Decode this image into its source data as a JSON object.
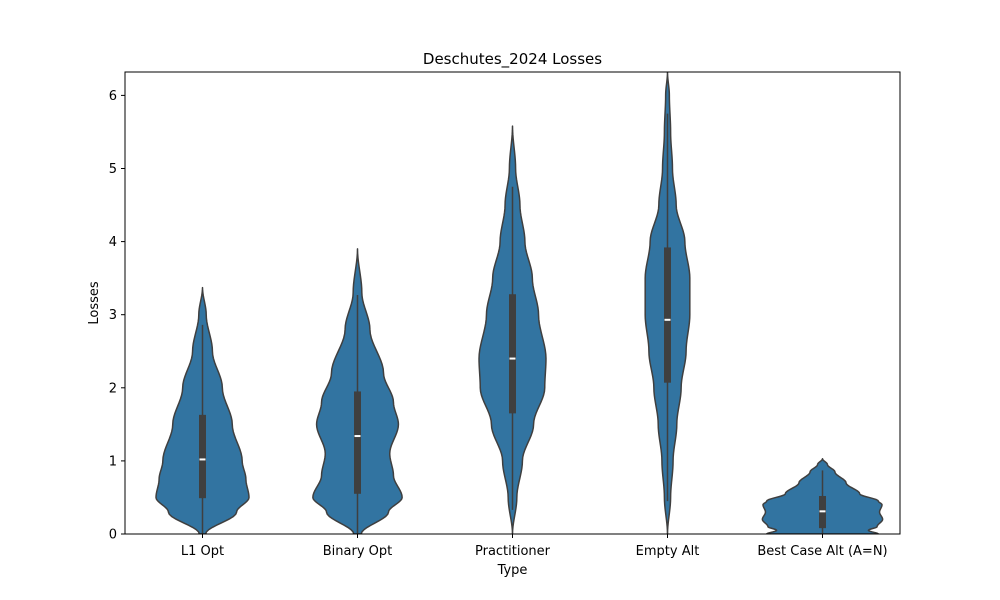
{
  "chart_data": {
    "type": "violin",
    "title": "Deschutes_2024 Losses",
    "xlabel": "Type",
    "ylabel": "Losses",
    "ylim": [
      0,
      6.32
    ],
    "yticks": [
      0,
      1,
      2,
      3,
      4,
      5,
      6
    ],
    "grid": false,
    "legend": "none",
    "color": "#3274a1",
    "edge_color": "#3f3f3f",
    "categories": [
      "L1 Opt",
      "Binary Opt",
      "Practitioner",
      "Empty Alt",
      "Best Case Alt (A=N)"
    ],
    "series": [
      {
        "category": "L1 Opt",
        "min": 0,
        "q1": 0.49,
        "median": 1.02,
        "q3": 1.63,
        "max": 3.37,
        "whisker_low": 0,
        "whisker_high": 2.86,
        "density": [
          [
            0,
            0.05
          ],
          [
            0.3,
            0.55
          ],
          [
            0.5,
            0.75
          ],
          [
            0.75,
            0.7
          ],
          [
            1.0,
            0.64
          ],
          [
            1.5,
            0.48
          ],
          [
            2.0,
            0.32
          ],
          [
            2.5,
            0.16
          ],
          [
            3.0,
            0.06
          ],
          [
            3.37,
            0
          ]
        ]
      },
      {
        "category": "Binary Opt",
        "min": 0,
        "q1": 0.55,
        "median": 1.34,
        "q3": 1.95,
        "max": 3.9,
        "whisker_low": 0,
        "whisker_high": 3.27,
        "density": [
          [
            0,
            0.06
          ],
          [
            0.3,
            0.5
          ],
          [
            0.5,
            0.72
          ],
          [
            0.8,
            0.58
          ],
          [
            1.1,
            0.52
          ],
          [
            1.5,
            0.66
          ],
          [
            1.8,
            0.58
          ],
          [
            2.2,
            0.42
          ],
          [
            2.8,
            0.2
          ],
          [
            3.3,
            0.07
          ],
          [
            3.9,
            0
          ]
        ]
      },
      {
        "category": "Practitioner",
        "min": 0,
        "q1": 1.65,
        "median": 2.4,
        "q3": 3.28,
        "max": 5.58,
        "whisker_low": 0.33,
        "whisker_high": 4.75,
        "density": [
          [
            0,
            0
          ],
          [
            0.5,
            0.07
          ],
          [
            1.0,
            0.16
          ],
          [
            1.5,
            0.34
          ],
          [
            2.0,
            0.52
          ],
          [
            2.4,
            0.54
          ],
          [
            3.0,
            0.42
          ],
          [
            3.5,
            0.32
          ],
          [
            4.0,
            0.2
          ],
          [
            4.5,
            0.12
          ],
          [
            5.0,
            0.05
          ],
          [
            5.58,
            0
          ]
        ]
      },
      {
        "category": "Empty Alt",
        "min": 0,
        "q1": 2.07,
        "median": 2.93,
        "q3": 3.92,
        "max": 6.32,
        "whisker_low": 0.45,
        "whisker_high": 5.75,
        "density": [
          [
            0,
            0
          ],
          [
            0.5,
            0.05
          ],
          [
            1.0,
            0.09
          ],
          [
            1.5,
            0.15
          ],
          [
            2.0,
            0.22
          ],
          [
            2.5,
            0.3
          ],
          [
            3.0,
            0.36
          ],
          [
            3.5,
            0.36
          ],
          [
            4.0,
            0.28
          ],
          [
            4.5,
            0.14
          ],
          [
            5.0,
            0.08
          ],
          [
            5.5,
            0.05
          ],
          [
            6.0,
            0.03
          ],
          [
            6.32,
            0
          ]
        ]
      },
      {
        "category": "Best Case Alt (A=N)",
        "min": 0,
        "q1": 0.08,
        "median": 0.31,
        "q3": 0.52,
        "max": 1.03,
        "whisker_low": 0,
        "whisker_high": 0.87,
        "density": [
          [
            0,
            0.9
          ],
          [
            0.05,
            0.74
          ],
          [
            0.1,
            0.88
          ],
          [
            0.2,
            0.97
          ],
          [
            0.3,
            0.92
          ],
          [
            0.4,
            0.96
          ],
          [
            0.45,
            0.9
          ],
          [
            0.55,
            0.6
          ],
          [
            0.7,
            0.38
          ],
          [
            0.85,
            0.2
          ],
          [
            0.95,
            0.08
          ],
          [
            1.03,
            0
          ]
        ]
      }
    ]
  }
}
